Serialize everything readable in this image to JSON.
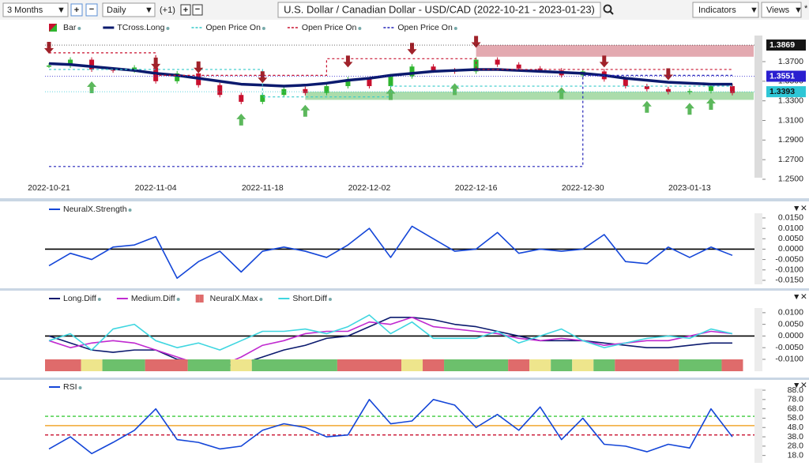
{
  "toolbar": {
    "period": "3 Months",
    "interval": "Daily",
    "offset": "(+1)",
    "title": "U.S. Dollar / Canadian Dollar - USD/CAD (2022-10-21 - 2023-01-23)",
    "indicators": "Indicators",
    "views": "Views"
  },
  "chart_data": [
    {
      "type": "candlestick",
      "categories": [
        "2022-10-21",
        null,
        null,
        null,
        null,
        "2022-11-04",
        null,
        null,
        null,
        null,
        "2022-11-18",
        null,
        null,
        null,
        null,
        "2022-12-02",
        null,
        null,
        null,
        null,
        "2022-12-16",
        null,
        null,
        null,
        null,
        "2022-12-30",
        null,
        null,
        null,
        null,
        "2023-01-13",
        null,
        null
      ],
      "ylim": [
        1.2395,
        1.3966
      ],
      "yticks": [
        {
          "value": 1.37,
          "label": "1.3700"
        },
        {
          "value": 1.35,
          "label": "1.3500"
        },
        {
          "value": 1.33,
          "label": "1.3300"
        },
        {
          "value": 1.31,
          "label": "1.3100"
        },
        {
          "value": 1.29,
          "label": "1.2900"
        },
        {
          "value": 1.27,
          "label": "1.2700"
        },
        {
          "value": 1.25,
          "label": "1.2500"
        }
      ],
      "series": [
        {
          "name": "Bar",
          "type": "candle",
          "up_color": "#2fb52f",
          "down_color": "#c8102e",
          "values": [
            1.366,
            1.372,
            1.362,
            1.361,
            1.364,
            1.35,
            1.358,
            1.346,
            1.336,
            1.329,
            1.336,
            1.342,
            1.338,
            1.345,
            1.352,
            1.345,
            1.355,
            1.365,
            1.361,
            1.36,
            1.372,
            1.367,
            1.363,
            1.361,
            1.356,
            1.36,
            1.352,
            1.345,
            1.342,
            1.339,
            1.34,
            1.345,
            1.338
          ]
        },
        {
          "name": "TCross.Long",
          "type": "line",
          "color": "#0b1a6e",
          "width": 3.5,
          "values": [
            1.368,
            1.367,
            1.365,
            1.363,
            1.361,
            1.358,
            1.356,
            1.353,
            1.35,
            1.347,
            1.346,
            1.345,
            1.346,
            1.348,
            1.351,
            1.353,
            1.356,
            1.358,
            1.36,
            1.361,
            1.362,
            1.362,
            1.361,
            1.36,
            1.359,
            1.358,
            1.356,
            1.353,
            1.351,
            1.349,
            1.348,
            1.347,
            1.347
          ]
        },
        {
          "name": "Open Price On",
          "type": "step",
          "color": "#35c9c9",
          "steps": [
            {
              "x": [
                0,
                10
              ],
              "value": 1.362
            },
            {
              "x": [
                10,
                16
              ],
              "value": 1.334
            },
            {
              "x": [
                16,
                32
              ],
              "value": 1.345
            }
          ]
        },
        {
          "name": "Open Price On",
          "type": "step",
          "color": "#c8102e",
          "steps": [
            {
              "x": [
                0,
                5
              ],
              "value": 1.379
            },
            {
              "x": [
                5,
                13
              ],
              "value": 1.356
            },
            {
              "x": [
                13,
                20
              ],
              "value": 1.373
            },
            {
              "x": [
                20,
                32
              ],
              "value": 1.362
            }
          ]
        },
        {
          "name": "Open Price On",
          "type": "step",
          "color": "#2424b8",
          "steps": [
            {
              "x": [
                0,
                25
              ],
              "value": 1.263
            },
            {
              "x": [
                25,
                32
              ],
              "value": 1.356
            }
          ]
        }
      ],
      "zones": [
        {
          "x": [
            20,
            32
          ],
          "range": [
            1.375,
            1.3869
          ],
          "color": "#d98c96"
        },
        {
          "x": [
            12,
            32
          ],
          "range": [
            1.331,
            1.3393
          ],
          "color": "#8fd08f"
        }
      ],
      "signals": {
        "up": [
          2,
          9,
          12,
          16,
          19,
          24,
          28,
          30,
          31
        ],
        "down": [
          0,
          5,
          7,
          10,
          14,
          17,
          20,
          26,
          29
        ],
        "up_color": "#5cb85c",
        "down_color": "#a0222a"
      },
      "price_markers": [
        {
          "value": 1.3869,
          "color": "#151515"
        },
        {
          "value": 1.3551,
          "color": "#2a1fd0"
        },
        {
          "value": 1.3393,
          "color": "#2ec6d6"
        }
      ]
    },
    {
      "type": "line",
      "ylim": [
        -0.0177,
        0.0203
      ],
      "yticks": [
        {
          "value": 0.015,
          "label": "0.0150"
        },
        {
          "value": 0.01,
          "label": "0.0100"
        },
        {
          "value": 0.005,
          "label": "0.0050"
        },
        {
          "value": 0,
          "label": "0.0000"
        },
        {
          "value": -0.005,
          "label": "-0.0050"
        },
        {
          "value": -0.01,
          "label": "-0.0100"
        },
        {
          "value": -0.015,
          "label": "-0.0150"
        }
      ],
      "hlines": [
        {
          "value": 0,
          "color": "#000000"
        }
      ],
      "series": [
        {
          "name": "NeuralX.Strength",
          "color": "#1446d8",
          "values": [
            -0.008,
            -0.002,
            -0.005,
            0.001,
            0.002,
            0.006,
            -0.014,
            -0.006,
            -0.001,
            -0.011,
            -0.001,
            0.001,
            -0.001,
            -0.004,
            0.002,
            0.01,
            -0.004,
            0.011,
            0.005,
            -0.001,
            0.0,
            0.008,
            -0.002,
            0.0,
            -0.001,
            0.0,
            0.007,
            -0.006,
            -0.007,
            0.001,
            -0.004,
            0.001,
            -0.003
          ]
        }
      ]
    },
    {
      "type": "line",
      "ylim": [
        -0.0151,
        0.0147
      ],
      "yticks": [
        {
          "value": 0.01,
          "label": "0.0100"
        },
        {
          "value": 0.005,
          "label": "0.0050"
        },
        {
          "value": 0,
          "label": "0.0000"
        },
        {
          "value": -0.005,
          "label": "-0.0050"
        },
        {
          "value": -0.01,
          "label": "-0.0100"
        }
      ],
      "hlines": [
        {
          "value": 0,
          "color": "#000000"
        }
      ],
      "series": [
        {
          "name": "Long.Diff",
          "color": "#0b1a6e",
          "values": [
            0.0,
            -0.003,
            -0.006,
            -0.007,
            -0.006,
            -0.006,
            -0.01,
            -0.011,
            -0.013,
            -0.012,
            -0.009,
            -0.006,
            -0.004,
            -0.001,
            0.0,
            0.004,
            0.008,
            0.008,
            0.007,
            0.005,
            0.004,
            0.002,
            0.0,
            -0.002,
            -0.002,
            -0.002,
            -0.003,
            -0.004,
            -0.005,
            -0.005,
            -0.004,
            -0.003,
            -0.003
          ]
        },
        {
          "name": "Medium.Diff",
          "color": "#c02ad0",
          "values": [
            -0.002,
            -0.005,
            -0.003,
            -0.002,
            -0.003,
            -0.006,
            -0.009,
            -0.012,
            -0.013,
            -0.009,
            -0.004,
            -0.002,
            0.001,
            0.002,
            0.002,
            0.006,
            0.005,
            0.008,
            0.004,
            0.003,
            0.002,
            0.001,
            -0.001,
            -0.002,
            -0.001,
            -0.002,
            -0.004,
            -0.003,
            -0.002,
            -0.002,
            0.0,
            0.002,
            0.001
          ]
        },
        {
          "name": "NeuralX.Max",
          "type": "band",
          "segments": [
            {
              "x": [
                0,
                1
              ],
              "color": "#df6b6b"
            },
            {
              "x": [
                2,
                2
              ],
              "color": "#eee58c"
            },
            {
              "x": [
                3,
                4
              ],
              "color": "#6cc06c"
            },
            {
              "x": [
                5,
                6
              ],
              "color": "#df6b6b"
            },
            {
              "x": [
                7,
                8
              ],
              "color": "#6cc06c"
            },
            {
              "x": [
                9,
                9
              ],
              "color": "#eee58c"
            },
            {
              "x": [
                10,
                13
              ],
              "color": "#6cc06c"
            },
            {
              "x": [
                14,
                16
              ],
              "color": "#df6b6b"
            },
            {
              "x": [
                17,
                17
              ],
              "color": "#eee58c"
            },
            {
              "x": [
                18,
                18
              ],
              "color": "#df6b6b"
            },
            {
              "x": [
                19,
                21
              ],
              "color": "#6cc06c"
            },
            {
              "x": [
                22,
                22
              ],
              "color": "#df6b6b"
            },
            {
              "x": [
                23,
                23
              ],
              "color": "#eee58c"
            },
            {
              "x": [
                24,
                24
              ],
              "color": "#6cc06c"
            },
            {
              "x": [
                25,
                25
              ],
              "color": "#eee58c"
            },
            {
              "x": [
                26,
                26
              ],
              "color": "#6cc06c"
            },
            {
              "x": [
                27,
                29
              ],
              "color": "#df6b6b"
            },
            {
              "x": [
                30,
                31
              ],
              "color": "#6cc06c"
            },
            {
              "x": [
                32,
                32
              ],
              "color": "#df6b6b"
            }
          ]
        },
        {
          "name": "Short.Diff",
          "color": "#3fd6e0",
          "values": [
            -0.002,
            0.001,
            -0.006,
            0.003,
            0.005,
            -0.002,
            -0.005,
            -0.003,
            -0.006,
            -0.002,
            0.002,
            0.002,
            0.003,
            0.001,
            0.004,
            0.009,
            0.001,
            0.006,
            -0.001,
            -0.001,
            -0.001,
            0.002,
            -0.003,
            0.0,
            0.003,
            -0.002,
            -0.005,
            -0.003,
            -0.001,
            0.0,
            -0.001,
            0.003,
            0.001
          ]
        }
      ]
    },
    {
      "type": "line",
      "ylim": [
        8.4,
        93.1
      ],
      "yticks": [
        {
          "value": 88,
          "label": "88.0"
        },
        {
          "value": 78,
          "label": "78.0"
        },
        {
          "value": 68,
          "label": "68.0"
        },
        {
          "value": 58,
          "label": "58.0"
        },
        {
          "value": 48,
          "label": "48.0"
        },
        {
          "value": 38,
          "label": "38.0"
        },
        {
          "value": 28,
          "label": "28.0"
        },
        {
          "value": 18,
          "label": "18.0"
        }
      ],
      "hlines": [
        {
          "value": 60,
          "color": "#3ccc3c",
          "dash": true
        },
        {
          "value": 50,
          "color": "#f0a830"
        },
        {
          "value": 40,
          "color": "#c8102e",
          "dash": true
        }
      ],
      "series": [
        {
          "name": "RSI",
          "color": "#1446d8",
          "values": [
            25,
            38,
            20,
            32,
            45,
            68,
            35,
            32,
            25,
            28,
            45,
            52,
            48,
            38,
            40,
            78,
            52,
            55,
            78,
            72,
            48,
            62,
            45,
            70,
            35,
            58,
            30,
            28,
            22,
            30,
            26,
            68,
            38
          ]
        }
      ]
    }
  ]
}
